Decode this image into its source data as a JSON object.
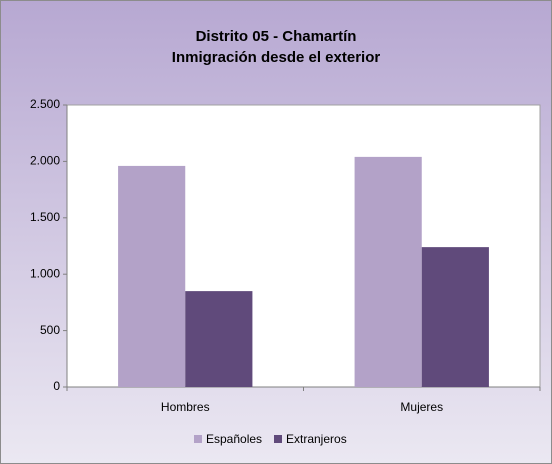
{
  "chart_data": {
    "type": "bar",
    "title": "Distrito 05 - Chamartín",
    "subtitle": "Inmigración desde el exterior",
    "categories": [
      "Hombres",
      "Mujeres"
    ],
    "series": [
      {
        "name": "Españoles",
        "color": "#b3a2c8",
        "values": [
          1960,
          2040
        ]
      },
      {
        "name": "Extranjeros",
        "color": "#604a7b",
        "values": [
          850,
          1240
        ]
      }
    ],
    "ylim": [
      0,
      2500
    ],
    "yticks": [
      0,
      500,
      {
        "value": 1000,
        "label": "1.000"
      },
      {
        "value": 1500,
        "label": "1.500"
      },
      {
        "value": 2000,
        "label": "2.000"
      },
      {
        "value": 2500,
        "label": "2.500"
      }
    ],
    "grid": false,
    "legend": "bottom"
  }
}
